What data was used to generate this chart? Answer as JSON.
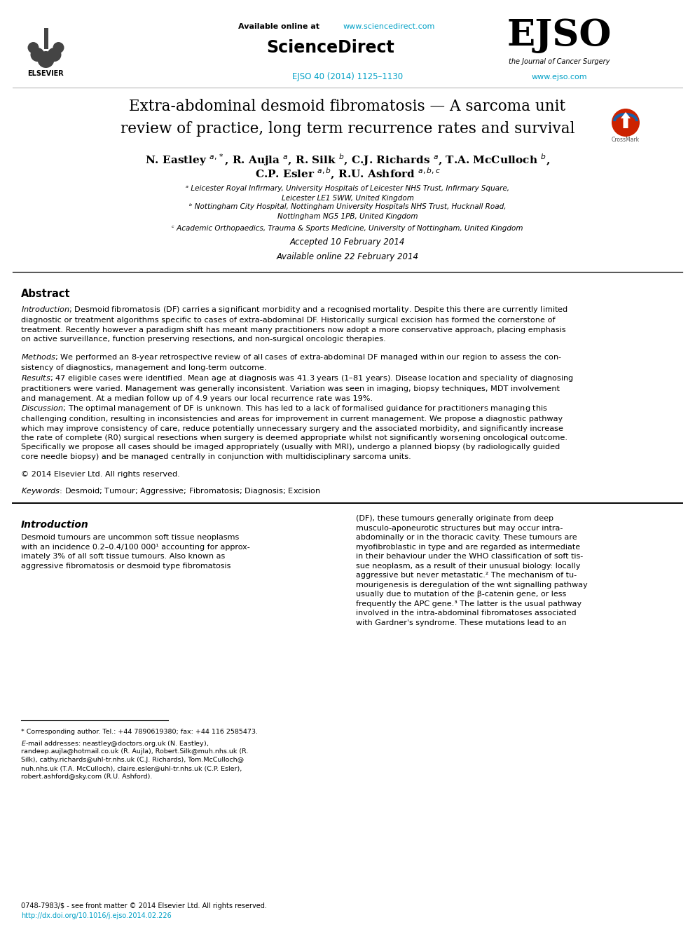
{
  "background_color": "#ffffff",
  "header": {
    "available_online_url": "www.sciencedirect.com",
    "journal_ref": "EJSO 40 (2014) 1125–1130",
    "website": "www.ejso.com",
    "url_color": "#00a0c6"
  },
  "title": "Extra-abdominal desmoid fibromatosis — A sarcoma unit\nreview of practice, long term recurrence rates and survival",
  "affil_a": "ᵃ Leicester Royal Infirmary, University Hospitals of Leicester NHS Trust, Infirmary Square,\nLeicester LE1 5WW, United Kingdom",
  "affil_b": "ᵇ Nottingham City Hospital, Nottingham University Hospitals NHS Trust, Hucknall Road,\nNottingham NG5 1PB, United Kingdom",
  "affil_c": "ᶜ Academic Orthopaedics, Trauma & Sports Medicine, University of Nottingham, United Kingdom",
  "dates": "Accepted 10 February 2014\nAvailable online 22 February 2014",
  "abstract_copyright": "© 2014 Elsevier Ltd. All rights reserved.",
  "footer_issn": "0748-7983/$ - see front matter © 2014 Elsevier Ltd. All rights reserved.",
  "footer_doi": "http://dx.doi.org/10.1016/j.ejso.2014.02.226"
}
